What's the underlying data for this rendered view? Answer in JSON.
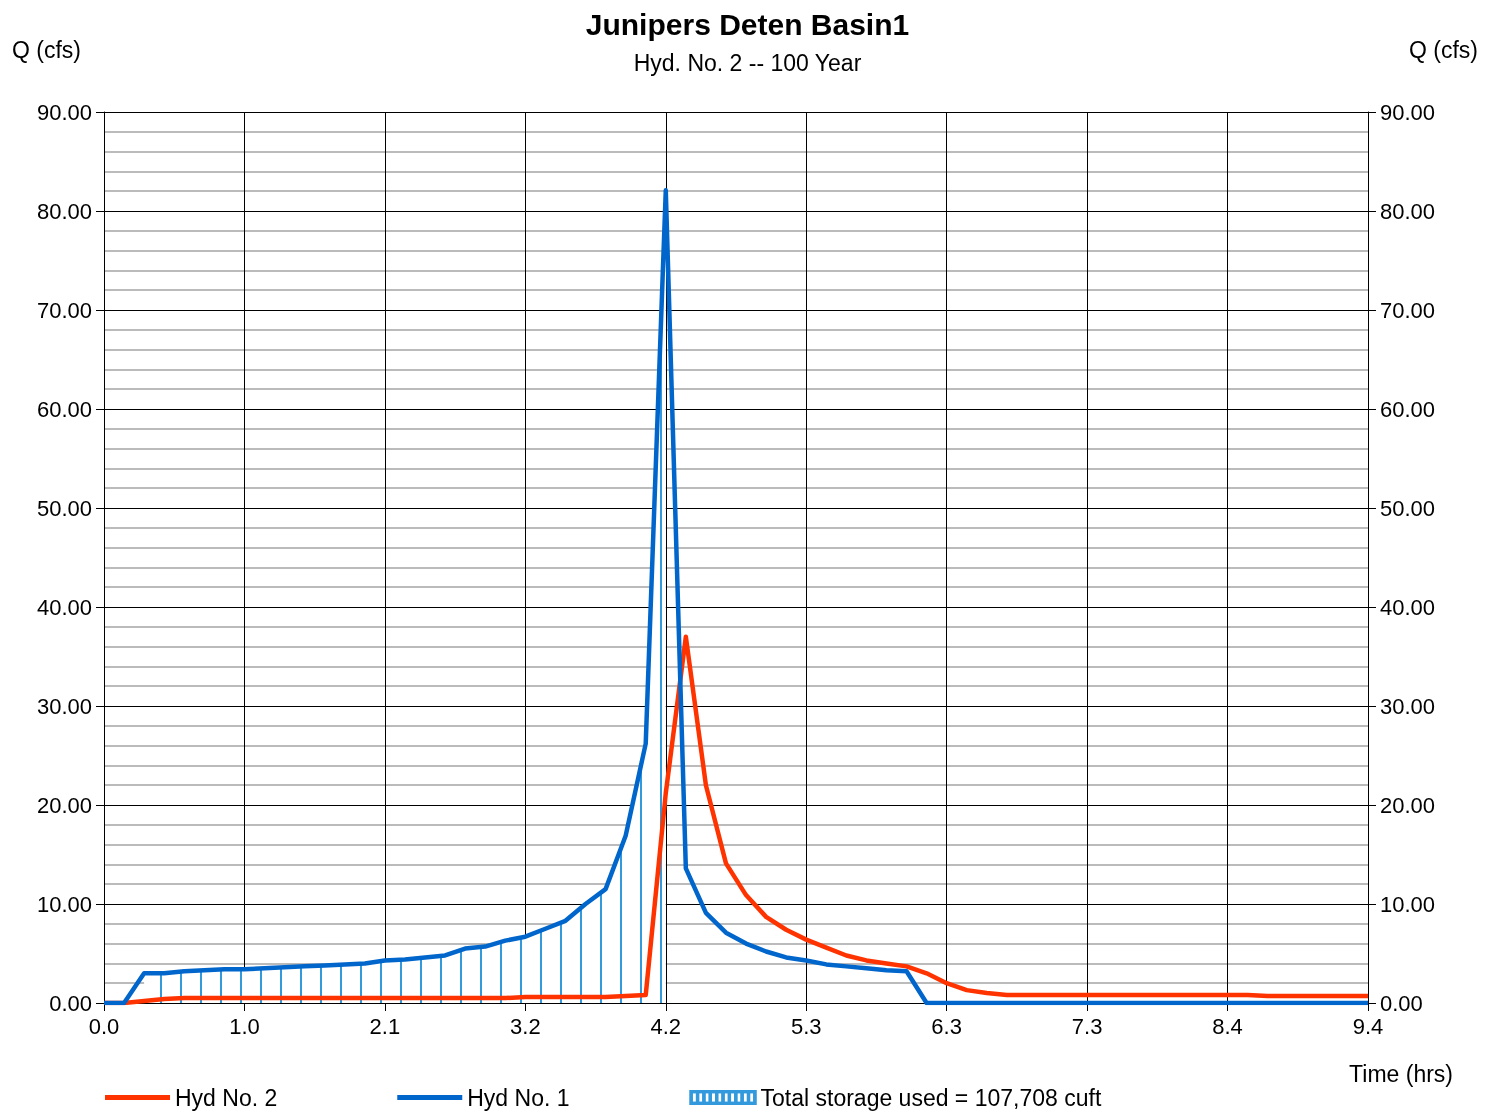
{
  "chart_data": {
    "type": "line",
    "title": "Junipers Deten Basin1",
    "subtitle": "Hyd. No. 2 -- 100 Year",
    "xlabel": "Time (hrs)",
    "ylabel": "Q (cfs)",
    "y2label": "Q (cfs)",
    "x": [
      0,
      0.15,
      0.3,
      0.45,
      0.6,
      0.75,
      0.9,
      1.05,
      1.2,
      1.35,
      1.5,
      1.65,
      1.8,
      1.95,
      2.1,
      2.25,
      2.4,
      2.55,
      2.7,
      2.85,
      3.0,
      3.15,
      3.3,
      3.45,
      3.6,
      3.75,
      3.9,
      4.05,
      4.2,
      4.35,
      4.5,
      4.65,
      4.8,
      4.95,
      5.1,
      5.25,
      5.4,
      5.55,
      5.7,
      5.85,
      6.0,
      6.15,
      6.3,
      6.45,
      6.6,
      6.75,
      6.9,
      7.05,
      7.2,
      7.35,
      7.5,
      7.65,
      7.8,
      7.95,
      8.1,
      8.25,
      8.4,
      8.55,
      8.7,
      8.85,
      9.0,
      9.15,
      9.3,
      9.45
    ],
    "series": [
      {
        "name": "Hyd No. 2",
        "color": "#ff3300",
        "values": [
          0,
          0,
          0.2,
          0.4,
          0.5,
          0.5,
          0.5,
          0.5,
          0.5,
          0.5,
          0.5,
          0.5,
          0.5,
          0.5,
          0.5,
          0.5,
          0.5,
          0.5,
          0.5,
          0.5,
          0.5,
          0.6,
          0.6,
          0.6,
          0.6,
          0.6,
          0.7,
          0.8,
          21.2,
          37.0,
          22.0,
          14.1,
          10.9,
          8.7,
          7.4,
          6.4,
          5.6,
          4.8,
          4.3,
          4.0,
          3.7,
          3.0,
          2.0,
          1.3,
          1.0,
          0.8,
          0.8,
          0.8,
          0.8,
          0.8,
          0.8,
          0.8,
          0.8,
          0.8,
          0.8,
          0.8,
          0.8,
          0.8,
          0.7,
          0.7,
          0.7,
          0.7,
          0.7,
          0.7
        ]
      },
      {
        "name": "Hyd No. 1",
        "color": "#0066cc",
        "values": [
          0,
          0,
          3.0,
          3.0,
          3.2,
          3.3,
          3.4,
          3.4,
          3.5,
          3.6,
          3.7,
          3.8,
          3.9,
          4.0,
          4.3,
          4.4,
          4.6,
          4.8,
          5.5,
          5.7,
          6.3,
          6.7,
          7.5,
          8.3,
          10.0,
          11.5,
          16.9,
          26.2,
          82.1,
          13.6,
          9.1,
          7.1,
          6.0,
          5.2,
          4.6,
          4.3,
          3.9,
          3.7,
          3.5,
          3.3,
          3.2,
          0,
          0,
          0,
          0,
          0,
          0,
          0,
          0,
          0,
          0,
          0,
          0,
          0,
          0,
          0,
          0,
          0,
          0,
          0,
          0,
          0,
          0,
          0
        ]
      },
      {
        "name": "Total storage used = 107,708 cuft",
        "type": "area",
        "color": "#3399dd",
        "x": [
          0.3,
          0.45,
          0.6,
          0.75,
          0.9,
          1.05,
          1.2,
          1.35,
          1.5,
          1.65,
          1.8,
          1.95,
          2.1,
          2.25,
          2.4,
          2.55,
          2.7,
          2.85,
          3.0,
          3.15,
          3.3,
          3.45,
          3.6,
          3.75,
          3.9,
          4.05,
          4.2
        ],
        "values": [
          3.0,
          3.0,
          3.2,
          3.3,
          3.4,
          3.4,
          3.5,
          3.6,
          3.7,
          3.8,
          3.9,
          4.0,
          4.3,
          4.4,
          4.6,
          4.8,
          5.5,
          5.7,
          6.3,
          6.7,
          7.5,
          8.3,
          10.0,
          11.5,
          16.9,
          26.2,
          82.1
        ]
      }
    ],
    "xlim": [
      0,
      9.45
    ],
    "xticks": [
      {
        "value": 0,
        "label": "0.0"
      },
      {
        "value": 1.05,
        "label": "1.0"
      },
      {
        "value": 2.1,
        "label": "2.1"
      },
      {
        "value": 3.15,
        "label": "3.2"
      },
      {
        "value": 4.2,
        "label": "4.2"
      },
      {
        "value": 5.25,
        "label": "5.3"
      },
      {
        "value": 6.3,
        "label": "6.3"
      },
      {
        "value": 7.35,
        "label": "7.3"
      },
      {
        "value": 8.4,
        "label": "8.4"
      },
      {
        "value": 9.45,
        "label": "9.4"
      }
    ],
    "ylim": [
      0,
      90
    ],
    "yticks": [
      {
        "value": 0,
        "label": "0.00"
      },
      {
        "value": 10,
        "label": "10.00"
      },
      {
        "value": 20,
        "label": "20.00"
      },
      {
        "value": 30,
        "label": "30.00"
      },
      {
        "value": 40,
        "label": "40.00"
      },
      {
        "value": 50,
        "label": "50.00"
      },
      {
        "value": 60,
        "label": "60.00"
      },
      {
        "value": 70,
        "label": "70.00"
      },
      {
        "value": 80,
        "label": "80.00"
      },
      {
        "value": 90,
        "label": "90.00"
      }
    ],
    "y2lim": [
      0,
      90
    ],
    "y2ticks": [
      {
        "value": 0,
        "label": "0.00"
      },
      {
        "value": 10,
        "label": "10.00"
      },
      {
        "value": 20,
        "label": "20.00"
      },
      {
        "value": 30,
        "label": "30.00"
      },
      {
        "value": 40,
        "label": "40.00"
      },
      {
        "value": 50,
        "label": "50.00"
      },
      {
        "value": 60,
        "label": "60.00"
      },
      {
        "value": 70,
        "label": "70.00"
      },
      {
        "value": 80,
        "label": "80.00"
      },
      {
        "value": 90,
        "label": "90.00"
      }
    ],
    "grid": true,
    "legend": "bottom",
    "marker": "none",
    "line_style": "solid"
  }
}
